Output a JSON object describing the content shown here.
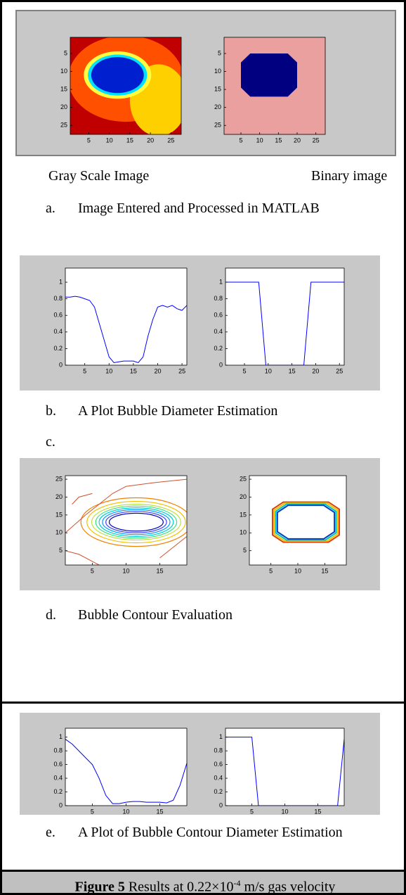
{
  "labels": [
    "Gray Scale Image",
    "Binary image"
  ],
  "plots": [
    {
      "type": "heatmap",
      "xlim": [
        0.5,
        27.5
      ],
      "ylim": [
        0.5,
        27.5
      ],
      "y_reversed": true,
      "xticks": [
        5,
        10,
        15,
        20,
        25
      ],
      "yticks": [
        5,
        10,
        15,
        20,
        25
      ]
    },
    {
      "type": "binary",
      "xlim": [
        0.5,
        27.5
      ],
      "ylim": [
        0.5,
        27.5
      ],
      "y_reversed": true,
      "xticks": [
        5,
        10,
        15,
        20,
        25
      ],
      "yticks": [
        5,
        10,
        15,
        20,
        25
      ]
    },
    {
      "type": "line",
      "color": "#0000ff",
      "xlim": [
        1,
        26
      ],
      "ylim": [
        0,
        1.17
      ],
      "xticks": [
        5,
        10,
        15,
        20,
        25
      ],
      "yticks": [
        0,
        0.2,
        0.4,
        0.6,
        0.8,
        1
      ],
      "x": [
        1,
        2,
        3,
        4,
        5,
        6,
        7,
        8,
        9,
        10,
        11,
        12,
        13,
        14,
        15,
        16,
        17,
        18,
        19,
        20,
        21,
        22,
        23,
        24,
        25,
        26
      ],
      "values": [
        0.82,
        0.82,
        0.83,
        0.82,
        0.8,
        0.78,
        0.7,
        0.5,
        0.3,
        0.1,
        0.03,
        0.04,
        0.05,
        0.05,
        0.05,
        0.03,
        0.1,
        0.35,
        0.55,
        0.7,
        0.72,
        0.7,
        0.72,
        0.68,
        0.66,
        0.72
      ]
    },
    {
      "type": "line",
      "color": "#0000ff",
      "xlim": [
        1,
        26
      ],
      "ylim": [
        0,
        1.17
      ],
      "xticks": [
        5,
        10,
        15,
        20,
        25
      ],
      "yticks": [
        0,
        0.2,
        0.4,
        0.6,
        0.8,
        1
      ],
      "x": [
        1,
        8,
        9.5,
        17.5,
        19,
        26
      ],
      "values": [
        1,
        1,
        0,
        0,
        1,
        1
      ]
    },
    {
      "type": "contour",
      "xlim": [
        1,
        19
      ],
      "ylim": [
        1,
        26
      ],
      "xticks": [
        5,
        10,
        15
      ],
      "yticks": [
        5,
        10,
        15,
        20,
        25
      ]
    },
    {
      "type": "outline",
      "xlim": [
        1,
        19
      ],
      "ylim": [
        1,
        26
      ],
      "xticks": [
        5,
        10,
        15
      ],
      "yticks": [
        5,
        10,
        15,
        20,
        25
      ]
    },
    {
      "type": "line",
      "color": "#0000ff",
      "xlim": [
        1,
        19
      ],
      "ylim": [
        0,
        1.13
      ],
      "xticks": [
        5,
        10,
        15
      ],
      "yticks": [
        0,
        0.2,
        0.4,
        0.6,
        0.8,
        1
      ],
      "x": [
        1,
        2,
        3,
        4,
        5,
        6,
        7,
        8,
        9,
        10,
        11,
        12,
        13,
        14,
        15,
        16,
        17,
        18,
        19
      ],
      "values": [
        0.97,
        0.9,
        0.8,
        0.7,
        0.6,
        0.4,
        0.15,
        0.03,
        0.03,
        0.05,
        0.06,
        0.06,
        0.05,
        0.05,
        0.05,
        0.04,
        0.08,
        0.3,
        0.62
      ]
    },
    {
      "type": "line",
      "color": "#0000ff",
      "xlim": [
        1,
        19
      ],
      "ylim": [
        0,
        1.13
      ],
      "xticks": [
        5,
        10,
        15
      ],
      "yticks": [
        0,
        0.2,
        0.4,
        0.6,
        0.8,
        1
      ],
      "x": [
        1,
        5,
        6,
        18,
        19
      ],
      "values": [
        1,
        1,
        0,
        0,
        0.97
      ]
    }
  ],
  "captions": [
    {
      "marker": "a.",
      "text": "Image Entered and Processed in MATLAB"
    },
    {
      "marker": "b.",
      "text": "A Plot Bubble Diameter Estimation"
    },
    {
      "marker": "c."
    },
    {
      "marker": "d.",
      "text": "Bubble Contour Evaluation"
    },
    {
      "marker": "e.",
      "text": "A Plot of Bubble Contour Diameter Estimation"
    }
  ],
  "figure_caption": {
    "label": "Figure 5",
    "text": "Results at 0.22×10",
    "superscript": "-4",
    "text_after": "m/s gas velocity"
  }
}
